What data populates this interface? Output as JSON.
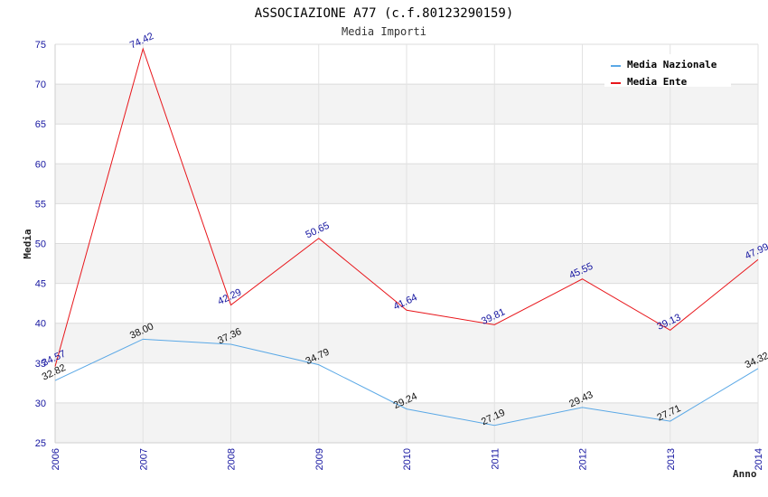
{
  "chart_data": {
    "type": "line",
    "title": "ASSOCIAZIONE A77 (c.f.80123290159)",
    "subtitle": "Media Importi",
    "xlabel": "Anno",
    "ylabel": "Media",
    "categories": [
      "2006",
      "2007",
      "2008",
      "2009",
      "2010",
      "2011",
      "2012",
      "2013",
      "2014"
    ],
    "ylim": [
      25,
      75
    ],
    "yticks": [
      25,
      30,
      35,
      40,
      45,
      50,
      55,
      60,
      65,
      70,
      75
    ],
    "legend_position": "top-right",
    "series": [
      {
        "name": "Media Nazionale",
        "color": "#5aa8e6",
        "values": [
          32.82,
          38.0,
          37.36,
          34.79,
          29.24,
          27.19,
          29.43,
          27.71,
          34.32
        ],
        "labels": [
          "32.82",
          "38.00",
          "37.36",
          "34.79",
          "29.24",
          "27.19",
          "29.43",
          "27.71",
          "34.32"
        ]
      },
      {
        "name": "Media Ente",
        "color": "#e8161b",
        "values": [
          34.57,
          74.42,
          42.29,
          50.65,
          41.64,
          39.81,
          45.55,
          39.13,
          47.99
        ],
        "labels": [
          "34.57",
          "74.42",
          "42.29",
          "50.65",
          "41.64",
          "39.81",
          "45.55",
          "39.13",
          "47.99"
        ]
      }
    ]
  }
}
